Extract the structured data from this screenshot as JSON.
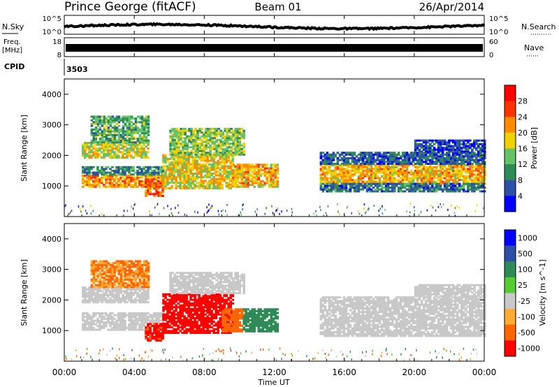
{
  "header": {
    "station": "Prince George (fitACF)",
    "beam": "Beam 01",
    "date": "26/Apr/2014"
  },
  "noise_panel": {
    "left_label": "N.Sky",
    "right_label": "N.Search",
    "ticks_left": [
      "10^5",
      "10^0"
    ],
    "ticks_right": [
      "10^5",
      "10^0"
    ]
  },
  "freq_panel": {
    "left_label_top": "Freq.",
    "left_label_bottom": "[MHz]",
    "right_label": "Nave",
    "ticks_left": [
      "18",
      "8"
    ],
    "ticks_right": [
      "60",
      "0"
    ]
  },
  "cpid": {
    "label": "CPID",
    "value": "3503"
  },
  "xaxis": {
    "label": "Time UT",
    "ticks": [
      "00:00",
      "04:00",
      "08:00",
      "12:00",
      "16:00",
      "20:00",
      "00:00"
    ]
  },
  "colors": {
    "background": "#ffffff",
    "power_scale": [
      "#0000ff",
      "#2e4fa8",
      "#2e8b57",
      "#66c266",
      "#f0d000",
      "#ff8c00",
      "#ff3300",
      "#ff0000"
    ],
    "velocity_scale": [
      "#0000ff",
      "#2e4fa8",
      "#2e8b57",
      "#55cc33",
      "#c8c8c8",
      "#ffaa33",
      "#ff6600",
      "#ff0000"
    ]
  },
  "chart_data": [
    {
      "type": "heatmap",
      "name": "power-panel",
      "ylabel": "Slant Range [km]",
      "yticks": [
        1000,
        2000,
        3000,
        4000
      ],
      "ylim": [
        0,
        4500
      ],
      "xlim_hours": [
        0,
        24
      ],
      "colorbar": {
        "label": "Power [dB]",
        "ticks": [
          4,
          8,
          12,
          16,
          20,
          24,
          28
        ],
        "range": [
          0,
          32
        ]
      },
      "regions": [
        {
          "t": [
            1.0,
            5.6
          ],
          "r": [
            950,
            1350
          ],
          "v": 22
        },
        {
          "t": [
            1.0,
            5.6
          ],
          "r": [
            1350,
            1600
          ],
          "v": 9
        },
        {
          "t": [
            1.0,
            4.8
          ],
          "r": [
            1900,
            2400
          ],
          "v": 17
        },
        {
          "t": [
            1.5,
            4.8
          ],
          "r": [
            2400,
            3300
          ],
          "v": 12
        },
        {
          "t": [
            4.6,
            5.6
          ],
          "r": [
            650,
            1200
          ],
          "v": 24
        },
        {
          "t": [
            5.6,
            9.6
          ],
          "r": [
            900,
            2000
          ],
          "v": 18
        },
        {
          "t": [
            6.0,
            10.2
          ],
          "r": [
            2000,
            2900
          ],
          "v": 15
        },
        {
          "t": [
            9.6,
            12.2
          ],
          "r": [
            950,
            1700
          ],
          "v": 20
        },
        {
          "t": [
            14.6,
            24.0
          ],
          "r": [
            1050,
            1700
          ],
          "v": 20
        },
        {
          "t": [
            14.6,
            24.0
          ],
          "r": [
            800,
            1050
          ],
          "v": 8
        },
        {
          "t": [
            14.6,
            24.0
          ],
          "r": [
            1700,
            2100
          ],
          "v": 7
        },
        {
          "t": [
            20.0,
            24.0
          ],
          "r": [
            2100,
            2500
          ],
          "v": 5
        }
      ]
    },
    {
      "type": "heatmap",
      "name": "velocity-panel",
      "ylabel": "Slant Range [km]",
      "yticks": [
        1000,
        2000,
        3000,
        4000
      ],
      "ylim": [
        0,
        4500
      ],
      "xlim_hours": [
        0,
        24
      ],
      "colorbar": {
        "label": "Velocity [m s^-1]",
        "ticks": [
          "1000",
          "500",
          "100",
          "25",
          "-25",
          "-100",
          "-500",
          "-1000"
        ]
      },
      "regions": [
        {
          "t": [
            1.0,
            5.6
          ],
          "r": [
            1000,
            1600
          ],
          "v": 0
        },
        {
          "t": [
            1.0,
            4.8
          ],
          "r": [
            1900,
            2400
          ],
          "v": 0
        },
        {
          "t": [
            1.5,
            4.8
          ],
          "r": [
            2400,
            3300
          ],
          "v": -60
        },
        {
          "t": [
            4.6,
            5.6
          ],
          "r": [
            650,
            1200
          ],
          "v": -400
        },
        {
          "t": [
            5.6,
            9.6
          ],
          "r": [
            900,
            2200
          ],
          "v": -900
        },
        {
          "t": [
            6.0,
            10.2
          ],
          "r": [
            2200,
            2900
          ],
          "v": 0
        },
        {
          "t": [
            9.0,
            10.2
          ],
          "r": [
            950,
            1700
          ],
          "v": -150
        },
        {
          "t": [
            10.2,
            12.2
          ],
          "r": [
            950,
            1700
          ],
          "v": 200
        },
        {
          "t": [
            14.6,
            24.0
          ],
          "r": [
            800,
            2100
          ],
          "v": 0
        },
        {
          "t": [
            20.0,
            24.0
          ],
          "r": [
            2100,
            2500
          ],
          "v": 0
        }
      ]
    }
  ]
}
